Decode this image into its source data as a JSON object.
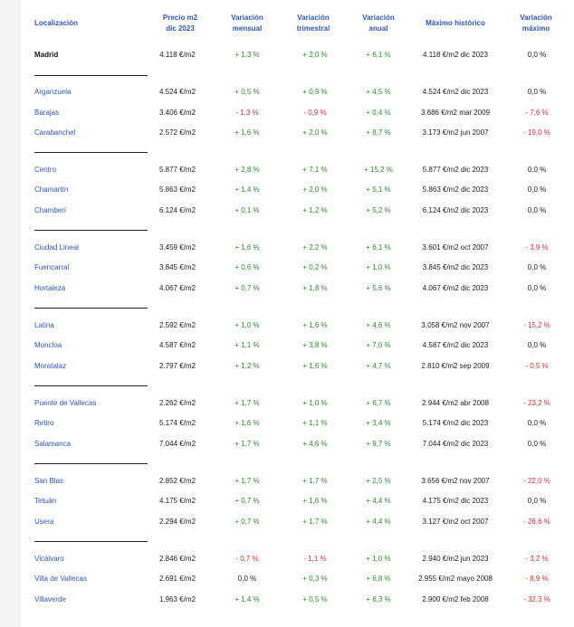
{
  "headers": {
    "loc": "Localización",
    "price": "Precio m2 dic 2023",
    "monthly": "Variación mensual",
    "quarterly": "Variación trimestral",
    "annual": "Variación anual",
    "max": "Máximo histórico",
    "vmax": "Variación máximo"
  },
  "rows": [
    {
      "loc": "Madrid",
      "price": "4.118 €/m2",
      "m": "+ 1,3 %",
      "t": "+ 2,0 %",
      "a": "+ 6,1 %",
      "max": "4.118 €/m2 dic 2023",
      "vmax": "0,0 %"
    },
    {
      "loc": "Arganzuela",
      "price": "4.524 €/m2",
      "m": "+ 0,5 %",
      "t": "+ 0,9 %",
      "a": "+ 4,5 %",
      "max": "4.524 €/m2 dic 2023",
      "vmax": "0,0 %"
    },
    {
      "loc": "Barajas",
      "price": "3.406 €/m2",
      "m": "- 1,3 %",
      "t": "- 0,9 %",
      "a": "+ 0,4 %",
      "max": "3.686 €/m2 mar 2009",
      "vmax": "- 7,6 %"
    },
    {
      "loc": "Carabanchel",
      "price": "2.572 €/m2",
      "m": "+ 1,6 %",
      "t": "+ 2,0 %",
      "a": "+ 8,7 %",
      "max": "3.173 €/m2 jun 2007",
      "vmax": "- 19,0 %"
    },
    {
      "loc": "Centro",
      "price": "5.877 €/m2",
      "m": "+ 2,8 %",
      "t": "+ 7,1 %",
      "a": "+ 15,2 %",
      "max": "5.877 €/m2 dic 2023",
      "vmax": "0,0 %"
    },
    {
      "loc": "Chamartín",
      "price": "5.863 €/m2",
      "m": "+ 1,4 %",
      "t": "+ 2,0 %",
      "a": "+ 5,1 %",
      "max": "5.863 €/m2 dic 2023",
      "vmax": "0,0 %"
    },
    {
      "loc": "Chamberí",
      "price": "6.124 €/m2",
      "m": "+ 0,1 %",
      "t": "+ 1,2 %",
      "a": "+ 5,2 %",
      "max": "6.124 €/m2 dic 2023",
      "vmax": "0,0 %"
    },
    {
      "loc": "Ciudad Lineal",
      "price": "3.459 €/m2",
      "m": "+ 1,6 %",
      "t": "+ 2,2 %",
      "a": "+ 6,1 %",
      "max": "3.601 €/m2 oct 2007",
      "vmax": "- 3,9 %"
    },
    {
      "loc": "Fuencarral",
      "price": "3.845 €/m2",
      "m": "+ 0,6 %",
      "t": "+ 0,2 %",
      "a": "+ 1,0 %",
      "max": "3.845 €/m2 dic 2023",
      "vmax": "0,0 %"
    },
    {
      "loc": "Hortaleza",
      "price": "4.067 €/m2",
      "m": "+ 0,7 %",
      "t": "+ 1,8 %",
      "a": "+ 5,6 %",
      "max": "4.067 €/m2 dic 2023",
      "vmax": "0,0 %"
    },
    {
      "loc": "Latina",
      "price": "2.592 €/m2",
      "m": "+ 1,0 %",
      "t": "+ 1,6 %",
      "a": "+ 4,6 %",
      "max": "3.058 €/m2 nov 2007",
      "vmax": "- 15,2 %"
    },
    {
      "loc": "Moncloa",
      "price": "4.587 €/m2",
      "m": "+ 1,1 %",
      "t": "+ 3,8 %",
      "a": "+ 7,0 %",
      "max": "4.587 €/m2 dic 2023",
      "vmax": "0,0 %"
    },
    {
      "loc": "Moratalaz",
      "price": "2.797 €/m2",
      "m": "+ 1,2 %",
      "t": "+ 1,6 %",
      "a": "+ 4,7 %",
      "max": "2.810 €/m2 sep 2009",
      "vmax": "- 0,5 %"
    },
    {
      "loc": "Puente de Vallecas",
      "price": "2.262 €/m2",
      "m": "+ 1,7 %",
      "t": "+ 1,0 %",
      "a": "+ 6,7 %",
      "max": "2.944 €/m2 abr 2008",
      "vmax": "- 23,2 %"
    },
    {
      "loc": "Retiro",
      "price": "5.174 €/m2",
      "m": "+ 1,6 %",
      "t": "+ 1,1 %",
      "a": "+ 3,4 %",
      "max": "5.174 €/m2 dic 2023",
      "vmax": "0,0 %"
    },
    {
      "loc": "Salamanca",
      "price": "7.044 €/m2",
      "m": "+ 1,7 %",
      "t": "+ 4,6 %",
      "a": "+ 9,7 %",
      "max": "7.044 €/m2 dic 2023",
      "vmax": "0,0 %"
    },
    {
      "loc": "San Blas",
      "price": "2.852 €/m2",
      "m": "+ 1,7 %",
      "t": "+ 1,7 %",
      "a": "+ 2,5 %",
      "max": "3.656 €/m2 nov 2007",
      "vmax": "- 22,0 %"
    },
    {
      "loc": "Tetuán",
      "price": "4.175 €/m2",
      "m": "+ 0,7 %",
      "t": "+ 1,6 %",
      "a": "+ 4,4 %",
      "max": "4.175 €/m2 dic 2023",
      "vmax": "0,0 %"
    },
    {
      "loc": "Usera",
      "price": "2.294 €/m2",
      "m": "+ 0,7 %",
      "t": "+ 1,7 %",
      "a": "+ 4,4 %",
      "max": "3.127 €/m2 oct 2007",
      "vmax": "- 26,6 %"
    },
    {
      "loc": "Vicálvaro",
      "price": "2.846 €/m2",
      "m": "- 0,7 %",
      "t": "- 1,1 %",
      "a": "+ 1,0 %",
      "max": "2.940 €/m2 jun 2023",
      "vmax": "- 3,2 %"
    },
    {
      "loc": "Villa de Vallecas",
      "price": "2.691 €/m2",
      "m": "0,0 %",
      "t": "+ 0,3 %",
      "a": "+ 6,8 %",
      "max": "2.955 €/m2 mayo 2008",
      "vmax": "- 8,9 %"
    },
    {
      "loc": "Villaverde",
      "price": "1.963 €/m2",
      "m": "+ 1,4 %",
      "t": "+ 0,5 %",
      "a": "+ 6,3 %",
      "max": "2.900 €/m2 feb 2008",
      "vmax": "- 32,3 %"
    }
  ],
  "colors": {
    "header": "#2e56b0",
    "link": "#2e56b0",
    "positive": "#2f8a2f",
    "negative": "#d0302f"
  }
}
